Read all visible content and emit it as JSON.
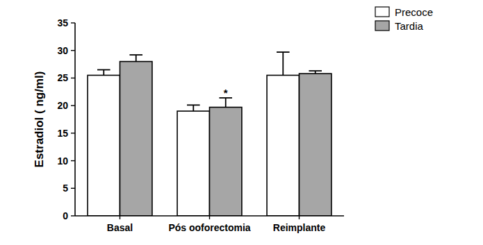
{
  "chart_data": {
    "type": "bar",
    "y_label": "Estradiol ( ng/ml)",
    "categories": [
      "Basal",
      "Pós ooforectomia",
      "Reimplante"
    ],
    "series": [
      {
        "name": "Precoce",
        "color": "#ffffff",
        "values": [
          25.5,
          19.0,
          25.5
        ],
        "errors": [
          1.0,
          1.1,
          4.2
        ]
      },
      {
        "name": "Tardia",
        "color": "#a6a6a6",
        "values": [
          28.0,
          19.7,
          25.8
        ],
        "errors": [
          1.2,
          1.7,
          0.5
        ]
      }
    ],
    "annotations": [
      {
        "text": "*",
        "category": "Pós ooforectomia",
        "series": "Tardia"
      }
    ],
    "ylim": [
      0,
      35
    ],
    "yticks": [
      0,
      5,
      10,
      15,
      20,
      25,
      30,
      35
    ],
    "grid": false,
    "legend": "top-right"
  }
}
